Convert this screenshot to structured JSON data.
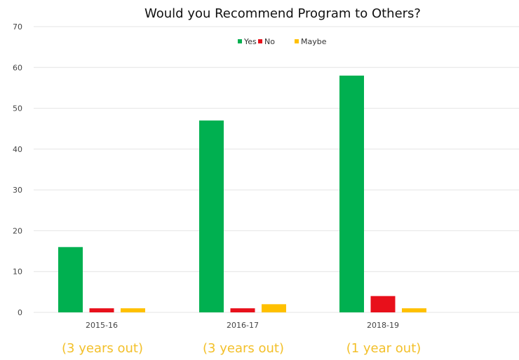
{
  "chart_data": {
    "type": "bar",
    "title": "Would you Recommend Program to Others?",
    "categories": [
      "2015-16",
      "2016-17",
      "2018-19"
    ],
    "series": [
      {
        "name": "Yes",
        "color": "#00b050",
        "values": [
          16,
          47,
          58
        ]
      },
      {
        "name": "No",
        "color": "#e8101b",
        "values": [
          1,
          1,
          4
        ]
      },
      {
        "name": "Maybe",
        "color": "#ffc000",
        "values": [
          1,
          2,
          1
        ]
      }
    ],
    "ylim": [
      0,
      70
    ],
    "yticks": [
      0,
      10,
      20,
      30,
      40,
      50,
      60,
      70
    ],
    "grid": true,
    "legend_position": "top-center",
    "annotations": [
      "(3 years out)",
      "(3 years out)",
      "(1 year out)"
    ],
    "annotation_color": "#f3c02a"
  }
}
